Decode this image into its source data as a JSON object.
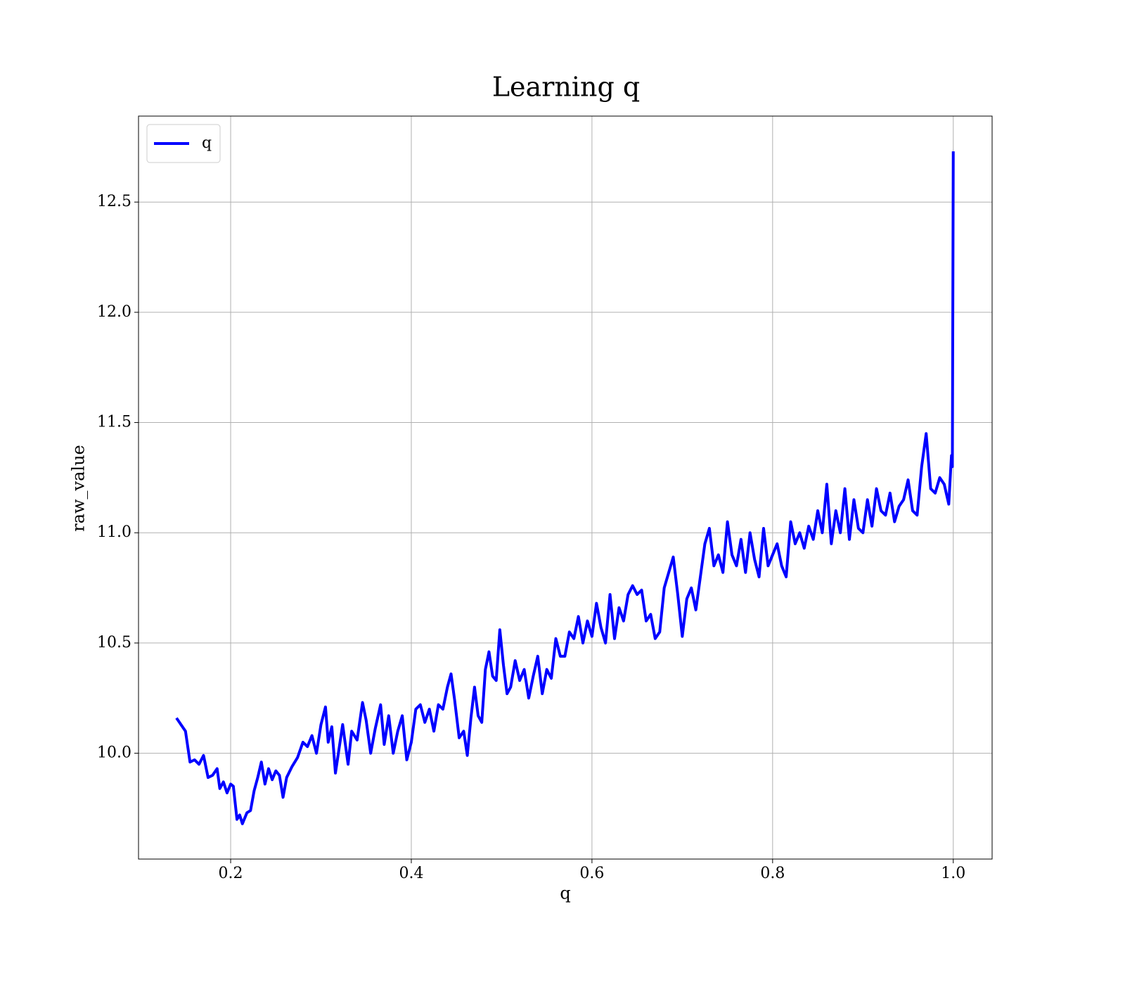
{
  "chart_data": {
    "type": "line",
    "title": "Learning q",
    "xlabel": "q",
    "ylabel": "raw_value",
    "xlim": [
      0.098,
      1.043
    ],
    "ylim": [
      9.52,
      12.89
    ],
    "xticks": [
      0.2,
      0.4,
      0.6,
      0.8,
      {
        "value": 1,
        "label": "1.0"
      }
    ],
    "yticks": [
      {
        "value": 10,
        "label": "10.0"
      },
      10.5,
      {
        "value": 11,
        "label": "11.0"
      },
      11.5,
      {
        "value": 12,
        "label": "12.0"
      },
      12.5
    ],
    "grid": true,
    "legend": "upper left",
    "series": [
      {
        "name": "q",
        "color": "#0000ff",
        "x": [
          0.14,
          0.15,
          0.155,
          0.16,
          0.165,
          0.17,
          0.175,
          0.18,
          0.185,
          0.188,
          0.192,
          0.196,
          0.2,
          0.203,
          0.207,
          0.21,
          0.213,
          0.218,
          0.222,
          0.226,
          0.23,
          0.234,
          0.238,
          0.242,
          0.246,
          0.25,
          0.254,
          0.258,
          0.262,
          0.268,
          0.274,
          0.28,
          0.285,
          0.29,
          0.295,
          0.3,
          0.305,
          0.308,
          0.312,
          0.316,
          0.32,
          0.324,
          0.33,
          0.334,
          0.34,
          0.346,
          0.35,
          0.355,
          0.36,
          0.366,
          0.37,
          0.375,
          0.38,
          0.385,
          0.39,
          0.395,
          0.4,
          0.405,
          0.41,
          0.415,
          0.42,
          0.425,
          0.43,
          0.435,
          0.44,
          0.444,
          0.448,
          0.453,
          0.458,
          0.462,
          0.466,
          0.47,
          0.474,
          0.478,
          0.482,
          0.486,
          0.49,
          0.494,
          0.498,
          0.502,
          0.506,
          0.51,
          0.515,
          0.52,
          0.525,
          0.53,
          0.535,
          0.54,
          0.545,
          0.55,
          0.555,
          0.56,
          0.565,
          0.57,
          0.575,
          0.58,
          0.585,
          0.59,
          0.595,
          0.6,
          0.605,
          0.61,
          0.615,
          0.62,
          0.625,
          0.63,
          0.635,
          0.64,
          0.645,
          0.65,
          0.655,
          0.66,
          0.665,
          0.67,
          0.675,
          0.68,
          0.685,
          0.69,
          0.695,
          0.7,
          0.705,
          0.71,
          0.715,
          0.72,
          0.725,
          0.73,
          0.735,
          0.74,
          0.745,
          0.75,
          0.755,
          0.76,
          0.765,
          0.77,
          0.775,
          0.78,
          0.785,
          0.79,
          0.795,
          0.8,
          0.805,
          0.81,
          0.815,
          0.82,
          0.825,
          0.83,
          0.835,
          0.84,
          0.845,
          0.85,
          0.855,
          0.86,
          0.865,
          0.87,
          0.875,
          0.88,
          0.885,
          0.89,
          0.895,
          0.9,
          0.905,
          0.91,
          0.915,
          0.92,
          0.925,
          0.93,
          0.935,
          0.94,
          0.945,
          0.95,
          0.955,
          0.96,
          0.965,
          0.97,
          0.975,
          0.98,
          0.985,
          0.99,
          0.995,
          0.998,
          0.999,
          1.0
        ],
        "values": [
          10.16,
          10.1,
          9.96,
          9.97,
          9.95,
          9.99,
          9.89,
          9.9,
          9.93,
          9.84,
          9.87,
          9.82,
          9.86,
          9.85,
          9.7,
          9.72,
          9.68,
          9.73,
          9.74,
          9.83,
          9.89,
          9.96,
          9.86,
          9.93,
          9.88,
          9.92,
          9.9,
          9.8,
          9.89,
          9.94,
          9.98,
          10.05,
          10.03,
          10.08,
          10.0,
          10.13,
          10.21,
          10.05,
          10.12,
          9.91,
          10.02,
          10.13,
          9.95,
          10.1,
          10.06,
          10.23,
          10.15,
          10.0,
          10.11,
          10.22,
          10.04,
          10.17,
          10.0,
          10.1,
          10.17,
          9.97,
          10.05,
          10.2,
          10.22,
          10.14,
          10.2,
          10.1,
          10.22,
          10.2,
          10.3,
          10.36,
          10.24,
          10.07,
          10.1,
          9.99,
          10.16,
          10.3,
          10.17,
          10.14,
          10.38,
          10.46,
          10.35,
          10.33,
          10.56,
          10.4,
          10.27,
          10.3,
          10.42,
          10.33,
          10.38,
          10.25,
          10.35,
          10.44,
          10.27,
          10.38,
          10.34,
          10.52,
          10.44,
          10.44,
          10.55,
          10.52,
          10.62,
          10.5,
          10.6,
          10.53,
          10.68,
          10.57,
          10.5,
          10.72,
          10.52,
          10.66,
          10.6,
          10.72,
          10.76,
          10.72,
          10.74,
          10.6,
          10.63,
          10.52,
          10.55,
          10.75,
          10.82,
          10.89,
          10.72,
          10.53,
          10.7,
          10.75,
          10.65,
          10.8,
          10.95,
          11.02,
          10.85,
          10.9,
          10.82,
          11.05,
          10.9,
          10.85,
          10.97,
          10.82,
          11.0,
          10.88,
          10.8,
          11.02,
          10.85,
          10.9,
          10.95,
          10.85,
          10.8,
          11.05,
          10.95,
          11.0,
          10.93,
          11.03,
          10.97,
          11.1,
          11.0,
          11.22,
          10.95,
          11.1,
          11.0,
          11.2,
          10.97,
          11.15,
          11.02,
          11.0,
          11.15,
          11.03,
          11.2,
          11.1,
          11.08,
          11.18,
          11.05,
          11.12,
          11.15,
          11.24,
          11.1,
          11.08,
          11.3,
          11.45,
          11.2,
          11.18,
          11.25,
          11.22,
          11.13,
          11.35,
          11.3,
          12.73
        ]
      }
    ]
  }
}
